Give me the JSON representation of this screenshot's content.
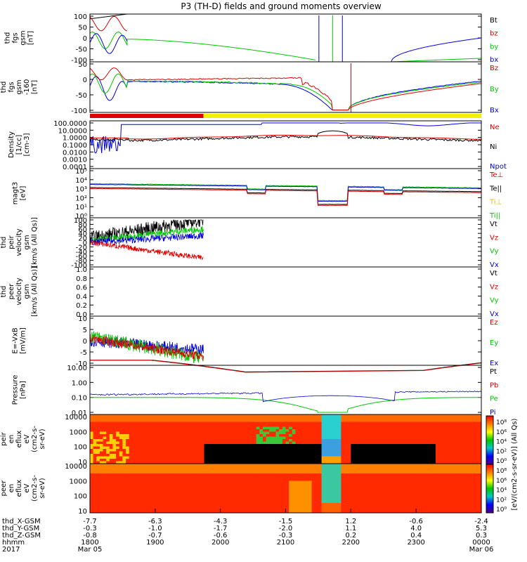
{
  "title": "P3 (TH-D) fields and ground moments overview",
  "chart_data": [
    {
      "type": "line",
      "panel": "fgs-gsm",
      "ylabel": [
        "thd",
        "fgs",
        "gsm",
        "[nT]"
      ],
      "ylim": [
        -100,
        100
      ],
      "yticks": [
        "100",
        "50",
        "0",
        "-50",
        "-100"
      ],
      "legend": [
        {
          "label": "Bt",
          "color": "#000000"
        },
        {
          "label": "bz",
          "color": "#e00000"
        },
        {
          "label": "by",
          "color": "#00c800"
        },
        {
          "label": "bx",
          "color": "#0000dc"
        }
      ]
    },
    {
      "type": "line",
      "panel": "fgs-gsm-zoom",
      "ylabel": [
        "thd",
        "fgs",
        "gsm",
        "-160",
        "[nT]"
      ],
      "ylim": [
        -130,
        80
      ],
      "yticks": [
        "50",
        "0",
        "-50",
        "-100"
      ],
      "legend": [
        {
          "label": "Bz",
          "color": "#e00000"
        },
        {
          "label": "By",
          "color": "#00c800"
        },
        {
          "label": "Bx",
          "color": "#0000dc"
        }
      ]
    },
    {
      "type": "line",
      "panel": "density",
      "ylabel": [
        "Density",
        "[1/cc]",
        "[cm-3]"
      ],
      "scale": "log",
      "yticks": [
        "100.0000",
        "10.0000",
        "1.0000",
        "0.1000",
        "0.0100",
        "0.0010",
        "0.0001"
      ],
      "legend": [
        {
          "label": "Ne",
          "color": "#e00000"
        },
        {
          "label": "Ni",
          "color": "#000000"
        },
        {
          "label": "Npot",
          "color": "#0000dc"
        }
      ]
    },
    {
      "type": "line",
      "panel": "temperature",
      "ylabel": [
        "magt3",
        "[eV]"
      ],
      "scale": "log",
      "yticks": [
        "10⁵",
        "10⁴",
        "10³",
        "10²",
        "10¹",
        "10⁰"
      ],
      "legend": [
        {
          "label": "Te⊥",
          "color": "#e00000"
        },
        {
          "label": "Te||",
          "color": "#000000"
        },
        {
          "label": "Ti⊥",
          "color": "#e0c000"
        },
        {
          "label": "Ti||",
          "color": "#00c800"
        }
      ]
    },
    {
      "type": "line",
      "panel": "peir-velocity",
      "ylabel": [
        "thd",
        "peir",
        "velocity",
        "gsm",
        "[km/s (All Qs)]"
      ],
      "ylim": [
        -100,
        100
      ],
      "yticks": [
        "100",
        "80",
        "60",
        "40",
        "20",
        "0",
        "-20",
        "-40",
        "-60",
        "-80",
        "-100"
      ],
      "legend": [
        {
          "label": "Vt",
          "color": "#000000"
        },
        {
          "label": "Vz",
          "color": "#e00000"
        },
        {
          "label": "Vy",
          "color": "#00c800"
        },
        {
          "label": "Vx",
          "color": "#0000dc"
        }
      ]
    },
    {
      "type": "line",
      "panel": "peer-velocity",
      "ylabel": [
        "thd",
        "peer",
        "velocity",
        "gsm",
        "[km/s (All Qs)]"
      ],
      "ylim": [
        0,
        1
      ],
      "yticks": [
        "1.0",
        "0.8",
        "0.6",
        "0.4",
        "0.2",
        "0.0"
      ],
      "legend": [
        {
          "label": "Vt",
          "color": "#000000"
        },
        {
          "label": "Vz",
          "color": "#e00000"
        },
        {
          "label": "Vy",
          "color": "#00c800"
        },
        {
          "label": "Vx",
          "color": "#0000dc"
        }
      ]
    },
    {
      "type": "line",
      "panel": "efield",
      "ylabel": [
        "E=-VxB",
        "[mV/m]"
      ],
      "ylim": [
        -10,
        10
      ],
      "yticks": [
        "10",
        "5",
        "0",
        "-5",
        "-10"
      ],
      "legend": [
        {
          "label": "Ez",
          "color": "#e00000"
        },
        {
          "label": "Ey",
          "color": "#00c800"
        },
        {
          "label": "Ex",
          "color": "#0000dc"
        }
      ]
    },
    {
      "type": "line",
      "panel": "pressure",
      "ylabel": [
        "Pressure",
        "[nPa]"
      ],
      "scale": "log",
      "yticks": [
        "10.00",
        "1.00",
        "0.10",
        "0.01"
      ],
      "legend": [
        {
          "label": "Pt",
          "color": "#000000"
        },
        {
          "label": "Pb",
          "color": "#e00000"
        },
        {
          "label": "Pe",
          "color": "#00c800"
        },
        {
          "label": "Pi",
          "color": "#0000dc"
        }
      ]
    },
    {
      "type": "heatmap",
      "panel": "peir-eflux",
      "ylabel": [
        "thd",
        "peir",
        "en",
        "eflux",
        "eV",
        "(cm2-s-",
        "sr-eV)"
      ],
      "scale": "log",
      "yticks": [
        "10000",
        "1000",
        "100",
        "10"
      ]
    },
    {
      "type": "heatmap",
      "panel": "peer-eflux",
      "ylabel": [
        "thd",
        "peer",
        "en",
        "eflux",
        "eV",
        "(cm2-s-",
        "sr-eV)"
      ],
      "scale": "log",
      "yticks": [
        "10000",
        "1000",
        "100",
        "10"
      ]
    }
  ],
  "colorbar": {
    "ticks": [
      "10⁸",
      "10⁶",
      "10⁴",
      "10²",
      "10⁰"
    ],
    "label": "[eV/(cm2-s-sr-eV)] (All Qs)"
  },
  "xaxis": {
    "rows": [
      {
        "label": "thd_X-GSM",
        "values": [
          "-7.7",
          "-6.3",
          "-4.3",
          "-1.5",
          "1.2",
          "-0.6",
          "-2.4"
        ]
      },
      {
        "label": "thd_Y-GSM",
        "values": [
          "-0.3",
          "-1.0",
          "-1.7",
          "-2.0",
          "1.1",
          "4.0",
          "5.3"
        ]
      },
      {
        "label": "thd_Z-GSM",
        "values": [
          "-0.8",
          "-0.7",
          "-0.6",
          "-0.3",
          "0.2",
          "0.4",
          "0.3"
        ]
      },
      {
        "label": "hhmm",
        "values": [
          "1800",
          "1900",
          "2000",
          "2100",
          "2200",
          "2300",
          "0000"
        ]
      },
      {
        "label": "2017",
        "values": [
          "Mar 05",
          "",
          "",
          "",
          "",
          "",
          "Mar 06"
        ]
      }
    ]
  }
}
